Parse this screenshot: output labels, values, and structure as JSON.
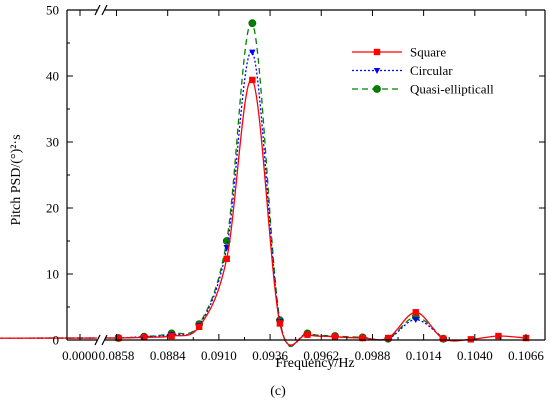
{
  "chart_data": {
    "type": "line",
    "panel_label": "(c)",
    "xlabel": "Frequency/Hz",
    "ylabel": "Pitch PSD/(°)²·s",
    "ylim": [
      0,
      50
    ],
    "xlim": [
      0.0,
      0.1076
    ],
    "axis_break": {
      "from": 0.0,
      "to": 0.0845
    },
    "x_ticks": [
      {
        "value": 0.0,
        "label": "0.0000"
      },
      {
        "value": 0.0858,
        "label": "0.0858"
      },
      {
        "value": 0.0884,
        "label": "0.0884"
      },
      {
        "value": 0.091,
        "label": "0.0910"
      },
      {
        "value": 0.0936,
        "label": "0.0936"
      },
      {
        "value": 0.0962,
        "label": "0.0962"
      },
      {
        "value": 0.0988,
        "label": "0.0988"
      },
      {
        "value": 0.1014,
        "label": "0.1014"
      },
      {
        "value": 0.104,
        "label": "0.1040"
      },
      {
        "value": 0.1066,
        "label": "0.1066"
      }
    ],
    "y_ticks": [
      {
        "value": 0,
        "label": "0"
      },
      {
        "value": 10,
        "label": "10"
      },
      {
        "value": 20,
        "label": "20"
      },
      {
        "value": 30,
        "label": "30"
      },
      {
        "value": 40,
        "label": "40"
      },
      {
        "value": 50,
        "label": "50"
      }
    ],
    "legend": {
      "placement": "top-right"
    },
    "series": [
      {
        "name": "Square",
        "color": "#ff0000",
        "line_style": "solid",
        "marker": "square",
        "points": [
          {
            "x": 0.0005,
            "y": 0.1
          },
          {
            "x": 0.0859,
            "y": 0.3
          },
          {
            "x": 0.0872,
            "y": 0.4
          },
          {
            "x": 0.0886,
            "y": 0.6
          },
          {
            "x": 0.09,
            "y": 2.0
          },
          {
            "x": 0.0914,
            "y": 12.3
          },
          {
            "x": 0.0927,
            "y": 39.4
          },
          {
            "x": 0.0941,
            "y": 2.5
          },
          {
            "x": 0.0955,
            "y": 0.8
          },
          {
            "x": 0.0969,
            "y": 0.5
          },
          {
            "x": 0.0983,
            "y": 0.3
          },
          {
            "x": 0.0996,
            "y": 0.3
          },
          {
            "x": 0.101,
            "y": 4.2
          },
          {
            "x": 0.1024,
            "y": 0.2
          },
          {
            "x": 0.1038,
            "y": 0.1
          },
          {
            "x": 0.1052,
            "y": 0.6
          },
          {
            "x": 0.1066,
            "y": 0.3
          }
        ]
      },
      {
        "name": "Circular",
        "color": "#0000ff",
        "line_style": "dotted",
        "marker": "triangle-down",
        "points": [
          {
            "x": 0.0005,
            "y": 0.1
          },
          {
            "x": 0.0859,
            "y": 0.3
          },
          {
            "x": 0.0872,
            "y": 0.5
          },
          {
            "x": 0.0886,
            "y": 0.8
          },
          {
            "x": 0.09,
            "y": 2.2
          },
          {
            "x": 0.0914,
            "y": 14.0
          },
          {
            "x": 0.0927,
            "y": 43.6
          },
          {
            "x": 0.0941,
            "y": 2.8
          },
          {
            "x": 0.0955,
            "y": 0.9
          },
          {
            "x": 0.0969,
            "y": 0.5
          },
          {
            "x": 0.0983,
            "y": 0.3
          },
          {
            "x": 0.0996,
            "y": 0.2
          },
          {
            "x": 0.101,
            "y": 3.1
          },
          {
            "x": 0.1024,
            "y": 0.2
          }
        ]
      },
      {
        "name": "Quasi-ellipticall",
        "color": "#008000",
        "line_style": "dashed",
        "marker": "circle",
        "points": [
          {
            "x": 0.0005,
            "y": 0.1
          },
          {
            "x": 0.0859,
            "y": 0.3
          },
          {
            "x": 0.0872,
            "y": 0.5
          },
          {
            "x": 0.0886,
            "y": 1.0
          },
          {
            "x": 0.09,
            "y": 2.4
          },
          {
            "x": 0.0914,
            "y": 15.0
          },
          {
            "x": 0.0927,
            "y": 48.0
          },
          {
            "x": 0.0941,
            "y": 3.0
          },
          {
            "x": 0.0955,
            "y": 1.0
          },
          {
            "x": 0.0969,
            "y": 0.6
          },
          {
            "x": 0.0983,
            "y": 0.4
          },
          {
            "x": 0.0996,
            "y": 0.2
          },
          {
            "x": 0.101,
            "y": 3.5
          },
          {
            "x": 0.1024,
            "y": 0.2
          }
        ]
      }
    ]
  }
}
